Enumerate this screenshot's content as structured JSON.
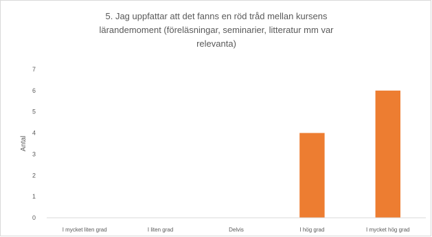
{
  "chart_data": {
    "type": "bar",
    "title_lines": [
      "5. Jag uppfattar att det fanns en röd tråd mellan kursens",
      "lärandemoment (föreläsningar, seminarier, litteratur mm var",
      "relevanta)"
    ],
    "xlabel": "",
    "ylabel": "Antal",
    "categories": [
      "I mycket liten grad",
      "I liten grad",
      "Delvis",
      "I hög grad",
      "I mycket hög grad"
    ],
    "values": [
      0,
      0,
      0,
      4,
      6
    ],
    "ylim": [
      0,
      7
    ],
    "yticks": [
      "0",
      "1",
      "2",
      "3",
      "4",
      "5",
      "6",
      "7"
    ],
    "bar_color": "#ed7d31",
    "grid": false,
    "legend": "none"
  }
}
